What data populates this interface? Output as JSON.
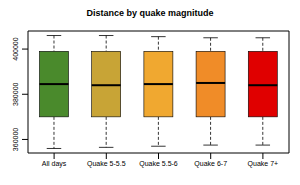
{
  "chart_data": {
    "type": "box",
    "title": "Distance by quake magnitude",
    "categories": [
      "All days",
      "Quake 5-5.5",
      "Quake 5.5-6",
      "Quake 6-7",
      "Quake 7+"
    ],
    "min": [
      356000,
      356500,
      357000,
      357500,
      357500
    ],
    "q1": [
      370000,
      370000,
      370000,
      370000,
      370000
    ],
    "median": [
      384500,
      384000,
      384500,
      385000,
      384000
    ],
    "q3": [
      399000,
      399000,
      399000,
      399000,
      399000
    ],
    "max": [
      406000,
      406000,
      405500,
      405000,
      405000
    ],
    "colors": [
      "#4a8a2c",
      "#c8a436",
      "#f0a830",
      "#f08c28",
      "#e00000"
    ],
    "ylim": [
      354000,
      408000
    ],
    "yticks": [
      360000,
      380000,
      400000
    ],
    "grid": false
  }
}
